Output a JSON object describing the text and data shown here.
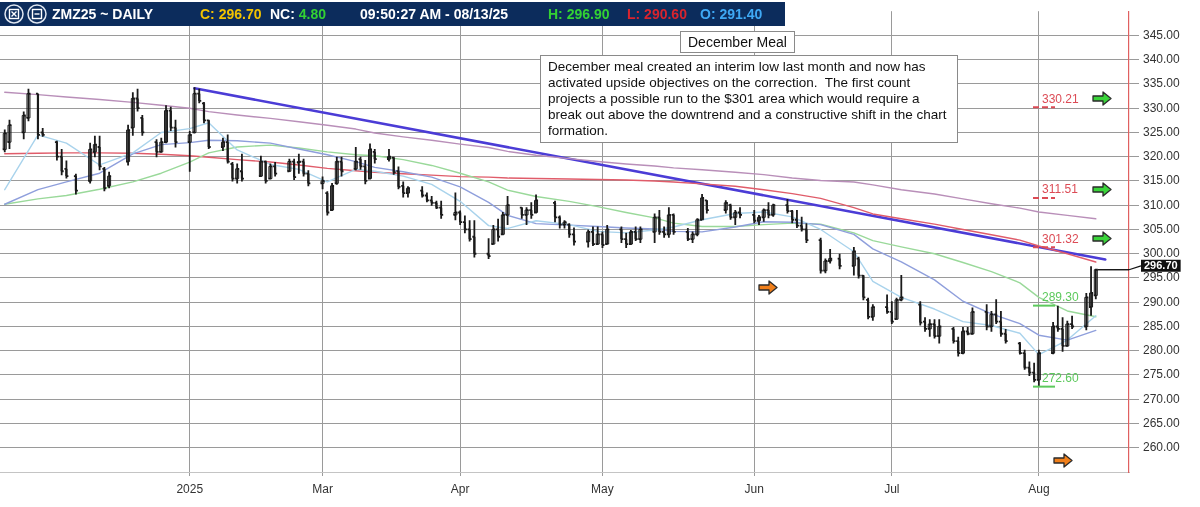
{
  "chart_data": {
    "type": "candlestick",
    "title": "December Meal",
    "subtitle": "December meal created an interim low last month and now has activated upside objectives on the correction.  The first count projects a possible run to the $301 area which would require a break out above the downtrend and a constructive shift in the chart formation.",
    "x": [
      "2024-12-26",
      "2024-12-27",
      "2024-12-30",
      "2024-12-31",
      "2025-01-02",
      "2025-01-03",
      "2025-01-06",
      "2025-01-07",
      "2025-01-08",
      "2025-01-10",
      "2025-01-13",
      "2025-01-14",
      "2025-01-15",
      "2025-01-16",
      "2025-01-17",
      "2025-01-21",
      "2025-01-22",
      "2025-01-23",
      "2025-01-24",
      "2025-01-27",
      "2025-01-28",
      "2025-01-29",
      "2025-01-30",
      "2025-01-31",
      "2025-02-03",
      "2025-02-04",
      "2025-02-05",
      "2025-02-06",
      "2025-02-07",
      "2025-02-10",
      "2025-02-11",
      "2025-02-12",
      "2025-02-13",
      "2025-02-14",
      "2025-02-18",
      "2025-02-19",
      "2025-02-20",
      "2025-02-21",
      "2025-02-24",
      "2025-02-25",
      "2025-02-26",
      "2025-02-27",
      "2025-02-28",
      "2025-03-03",
      "2025-03-04",
      "2025-03-05",
      "2025-03-06",
      "2025-03-07",
      "2025-03-10",
      "2025-03-11",
      "2025-03-12",
      "2025-03-13",
      "2025-03-14",
      "2025-03-17",
      "2025-03-18",
      "2025-03-19",
      "2025-03-20",
      "2025-03-21",
      "2025-03-24",
      "2025-03-25",
      "2025-03-26",
      "2025-03-27",
      "2025-03-28",
      "2025-03-31",
      "2025-04-01",
      "2025-04-02",
      "2025-04-03",
      "2025-04-04",
      "2025-04-07",
      "2025-04-08",
      "2025-04-09",
      "2025-04-10",
      "2025-04-11",
      "2025-04-14",
      "2025-04-15",
      "2025-04-16",
      "2025-04-17",
      "2025-04-21",
      "2025-04-22",
      "2025-04-23",
      "2025-04-24",
      "2025-04-25",
      "2025-04-28",
      "2025-04-29",
      "2025-04-30",
      "2025-05-01",
      "2025-05-02",
      "2025-05-05",
      "2025-05-06",
      "2025-05-07",
      "2025-05-08",
      "2025-05-09",
      "2025-05-12",
      "2025-05-13",
      "2025-05-14",
      "2025-05-15",
      "2025-05-16",
      "2025-05-19",
      "2025-05-20",
      "2025-05-21",
      "2025-05-22",
      "2025-05-23",
      "2025-05-27",
      "2025-05-28",
      "2025-05-29",
      "2025-05-30",
      "2025-06-02",
      "2025-06-03",
      "2025-06-04",
      "2025-06-05",
      "2025-06-06",
      "2025-06-09",
      "2025-06-10",
      "2025-06-11",
      "2025-06-12",
      "2025-06-13",
      "2025-06-16",
      "2025-06-17",
      "2025-06-18",
      "2025-06-20",
      "2025-06-23",
      "2025-06-24",
      "2025-06-25",
      "2025-06-26",
      "2025-06-27",
      "2025-06-30",
      "2025-07-01",
      "2025-07-02",
      "2025-07-03",
      "2025-07-07",
      "2025-07-08",
      "2025-07-09",
      "2025-07-10",
      "2025-07-11",
      "2025-07-14",
      "2025-07-15",
      "2025-07-16",
      "2025-07-17",
      "2025-07-18",
      "2025-07-21",
      "2025-07-22",
      "2025-07-23",
      "2025-07-24",
      "2025-07-25",
      "2025-07-28",
      "2025-07-29",
      "2025-07-30",
      "2025-07-31",
      "2025-08-01",
      "2025-08-04",
      "2025-08-05",
      "2025-08-06",
      "2025-08-07",
      "2025-08-08",
      "2025-08-11",
      "2025-08-12",
      "2025-08-13"
    ],
    "ohlc": [
      [
        321.5,
        325.6,
        320.9,
        324.8
      ],
      [
        323.0,
        327.6,
        321.6,
        326.5
      ],
      [
        325.0,
        329.3,
        323.6,
        328.5
      ],
      [
        328.0,
        334.0,
        327.3,
        333.0
      ],
      [
        333.0,
        333.0,
        323.6,
        324.5
      ],
      [
        325.0,
        325.9,
        324.1,
        324.5
      ],
      [
        323.0,
        323.3,
        319.2,
        320.0
      ],
      [
        320.0,
        321.6,
        316.2,
        317.0
      ],
      [
        317.5,
        319.2,
        315.5,
        316.0
      ],
      [
        316.0,
        316.5,
        312.2,
        313.0
      ],
      [
        315.0,
        322.9,
        314.5,
        321.5
      ],
      [
        321.0,
        324.3,
        319.9,
        322.5
      ],
      [
        322.0,
        324.3,
        317.2,
        318.0
      ],
      [
        317.5,
        317.9,
        312.9,
        313.5
      ],
      [
        314.0,
        316.9,
        313.5,
        316.0
      ],
      [
        319.0,
        326.6,
        318.2,
        325.5
      ],
      [
        326.0,
        333.3,
        324.3,
        332.0
      ],
      [
        332.0,
        334.0,
        329.3,
        330.0
      ],
      [
        328.0,
        328.6,
        324.3,
        325.0
      ],
      [
        323.0,
        323.6,
        319.9,
        321.0
      ],
      [
        321.0,
        323.9,
        320.8,
        323.0
      ],
      [
        323.0,
        330.6,
        322.8,
        329.5
      ],
      [
        329.5,
        330.3,
        325.3,
        326.0
      ],
      [
        326.0,
        327.6,
        321.9,
        323.0
      ],
      [
        323.0,
        325.3,
        316.9,
        324.5
      ],
      [
        325.0,
        334.3,
        324.8,
        333.0
      ],
      [
        333.0,
        334.0,
        331.0,
        331.5
      ],
      [
        331.0,
        331.3,
        326.9,
        327.5
      ],
      [
        327.5,
        327.6,
        321.6,
        322.0
      ],
      [
        322.0,
        323.9,
        321.2,
        323.0
      ],
      [
        323.0,
        324.6,
        318.6,
        319.0
      ],
      [
        318.5,
        318.9,
        314.9,
        315.5
      ],
      [
        315.5,
        318.6,
        314.5,
        317.5
      ],
      [
        317.0,
        320.6,
        314.9,
        315.5
      ],
      [
        316.0,
        320.2,
        315.8,
        319.0
      ],
      [
        319.0,
        319.2,
        314.5,
        315.0
      ],
      [
        315.5,
        318.6,
        315.3,
        318.0
      ],
      [
        318.0,
        318.9,
        315.9,
        316.5
      ],
      [
        317.0,
        319.6,
        316.9,
        319.0
      ],
      [
        319.0,
        319.6,
        315.2,
        315.8
      ],
      [
        318.8,
        320.6,
        316.5,
        319.0
      ],
      [
        319.0,
        319.6,
        315.9,
        316.5
      ],
      [
        316.5,
        317.2,
        313.9,
        314.5
      ],
      [
        314.5,
        315.9,
        313.3,
        315.0
      ],
      [
        312.5,
        312.9,
        307.9,
        308.5
      ],
      [
        309.0,
        314.6,
        308.8,
        314.0
      ],
      [
        314.5,
        320.0,
        314.2,
        319.0
      ],
      [
        319.0,
        320.0,
        315.9,
        317.0
      ],
      [
        317.5,
        322.0,
        317.2,
        319.0
      ],
      [
        319.5,
        320.0,
        317.3,
        318.0
      ],
      [
        318.0,
        319.3,
        314.3,
        315.0
      ],
      [
        315.5,
        322.7,
        315.3,
        321.5
      ],
      [
        321.0,
        321.6,
        318.6,
        319.5
      ],
      [
        319.5,
        321.6,
        319.0,
        320.0
      ],
      [
        319.8,
        320.0,
        316.3,
        316.8
      ],
      [
        317.0,
        318.0,
        313.3,
        313.8
      ],
      [
        314.0,
        314.9,
        311.6,
        312.5
      ],
      [
        312.5,
        313.9,
        311.6,
        313.5
      ],
      [
        313.0,
        313.9,
        311.6,
        312.0
      ],
      [
        312.0,
        312.6,
        310.6,
        311.0
      ],
      [
        311.0,
        311.9,
        309.9,
        310.5
      ],
      [
        310.5,
        310.9,
        309.2,
        309.5
      ],
      [
        309.5,
        310.9,
        307.2,
        308.0
      ],
      [
        308.0,
        312.6,
        306.9,
        308.5
      ],
      [
        308.5,
        308.9,
        305.9,
        306.5
      ],
      [
        306.5,
        307.9,
        304.2,
        305.0
      ],
      [
        305.0,
        306.9,
        302.5,
        303.0
      ],
      [
        303.5,
        306.9,
        299.2,
        300.0
      ],
      [
        300.0,
        303.2,
        298.9,
        299.5
      ],
      [
        302.0,
        305.9,
        301.9,
        305.0
      ],
      [
        305.0,
        307.2,
        302.5,
        303.5
      ],
      [
        304.0,
        308.6,
        303.8,
        308.0
      ],
      [
        308.0,
        311.9,
        305.9,
        310.0
      ],
      [
        309.5,
        309.6,
        307.2,
        308.0
      ],
      [
        308.0,
        309.6,
        305.9,
        309.0
      ],
      [
        309.0,
        310.6,
        307.2,
        308.0
      ],
      [
        308.5,
        312.2,
        308.3,
        311.0
      ],
      [
        310.5,
        310.9,
        306.5,
        307.5
      ],
      [
        307.5,
        307.9,
        305.2,
        306.0
      ],
      [
        306.0,
        306.9,
        305.2,
        306.5
      ],
      [
        306.0,
        306.3,
        303.3,
        304.0
      ],
      [
        304.0,
        305.4,
        301.7,
        302.5
      ],
      [
        302.5,
        305.0,
        301.3,
        304.5
      ],
      [
        304.5,
        305.6,
        301.6,
        302.0
      ],
      [
        302.0,
        305.6,
        301.8,
        304.0
      ],
      [
        304.0,
        304.6,
        301.2,
        301.8
      ],
      [
        302.0,
        305.9,
        301.9,
        305.0
      ],
      [
        305.0,
        305.6,
        302.2,
        303.0
      ],
      [
        303.0,
        304.3,
        301.2,
        302.0
      ],
      [
        302.0,
        304.9,
        301.8,
        304.5
      ],
      [
        304.5,
        305.6,
        302.6,
        303.0
      ],
      [
        303.0,
        305.6,
        302.2,
        305.0
      ],
      [
        304.5,
        308.3,
        302.2,
        307.5
      ],
      [
        307.5,
        309.0,
        303.9,
        304.5
      ],
      [
        304.5,
        305.6,
        303.3,
        304.0
      ],
      [
        304.0,
        309.6,
        303.3,
        308.0
      ],
      [
        308.0,
        308.3,
        303.9,
        304.5
      ],
      [
        304.5,
        305.3,
        302.6,
        303.0
      ],
      [
        303.0,
        304.6,
        302.2,
        304.0
      ],
      [
        304.0,
        307.3,
        303.6,
        307.0
      ],
      [
        307.0,
        312.3,
        307.0,
        311.5
      ],
      [
        311.0,
        311.0,
        308.3,
        309.0
      ],
      [
        309.0,
        311.0,
        308.3,
        310.5
      ],
      [
        310.0,
        310.3,
        307.0,
        307.5
      ],
      [
        307.5,
        309.0,
        305.9,
        308.5
      ],
      [
        308.5,
        309.6,
        307.3,
        308.0
      ],
      [
        308.0,
        309.0,
        306.3,
        306.8
      ],
      [
        306.8,
        308.0,
        305.9,
        307.5
      ],
      [
        307.5,
        309.3,
        306.6,
        309.0
      ],
      [
        309.0,
        310.6,
        307.3,
        308.0
      ],
      [
        308.0,
        310.3,
        307.6,
        310.0
      ],
      [
        310.0,
        311.3,
        308.3,
        308.8
      ],
      [
        308.8,
        309.0,
        306.3,
        307.0
      ],
      [
        307.0,
        309.0,
        305.3,
        305.8
      ],
      [
        305.8,
        307.6,
        304.6,
        305.0
      ],
      [
        305.0,
        306.3,
        302.2,
        302.8
      ],
      [
        302.8,
        303.3,
        295.9,
        296.5
      ],
      [
        296.5,
        299.0,
        296.0,
        298.5
      ],
      [
        298.5,
        301.0,
        298.0,
        299.0
      ],
      [
        299.0,
        300.0,
        296.8,
        297.5
      ],
      [
        297.5,
        301.4,
        295.5,
        300.5
      ],
      [
        299.0,
        299.4,
        294.9,
        295.5
      ],
      [
        295.5,
        295.6,
        290.4,
        291.0
      ],
      [
        290.5,
        290.9,
        286.5,
        287.0
      ],
      [
        287.0,
        289.6,
        286.2,
        289.0
      ],
      [
        289.0,
        291.6,
        287.6,
        288.0
      ],
      [
        288.0,
        290.2,
        285.5,
        286.0
      ],
      [
        286.5,
        290.9,
        286.5,
        290.5
      ],
      [
        290.5,
        295.6,
        290.2,
        291.0
      ],
      [
        289.5,
        290.2,
        285.2,
        285.8
      ],
      [
        286.0,
        286.9,
        283.9,
        284.5
      ],
      [
        284.5,
        286.5,
        282.9,
        285.5
      ],
      [
        285.5,
        286.5,
        282.5,
        283.0
      ],
      [
        283.0,
        286.5,
        281.5,
        285.0
      ],
      [
        284.5,
        284.9,
        281.5,
        282.0
      ],
      [
        282.0,
        282.9,
        278.8,
        279.5
      ],
      [
        279.5,
        284.9,
        279.3,
        284.0
      ],
      [
        284.0,
        284.9,
        283.2,
        283.5
      ],
      [
        283.5,
        288.9,
        283.3,
        288.0
      ],
      [
        288.0,
        289.6,
        284.2,
        285.0
      ],
      [
        285.0,
        288.2,
        283.9,
        287.5
      ],
      [
        287.5,
        290.6,
        285.5,
        286.0
      ],
      [
        286.0,
        288.2,
        282.9,
        283.5
      ],
      [
        283.5,
        284.5,
        281.5,
        282.0
      ],
      [
        281.5,
        281.8,
        279.2,
        279.5
      ],
      [
        279.5,
        280.2,
        276.1,
        276.5
      ],
      [
        276.5,
        277.8,
        274.8,
        275.5
      ],
      [
        275.5,
        277.5,
        273.5,
        274.0
      ],
      [
        274.0,
        280.2,
        272.6,
        279.5
      ],
      [
        279.5,
        285.9,
        279.3,
        285.0
      ],
      [
        285.0,
        289.3,
        283.9,
        284.5
      ],
      [
        284.5,
        286.9,
        279.8,
        281.0
      ],
      [
        281.0,
        286.2,
        280.8,
        285.5
      ],
      [
        285.5,
        287.2,
        284.5,
        285.0
      ],
      [
        285.0,
        291.9,
        284.2,
        291.0
      ],
      [
        289.0,
        297.4,
        287.2,
        291.9
      ],
      [
        291.4,
        296.9,
        290.6,
        296.7
      ]
    ],
    "color": "#1a1a1a",
    "series": [
      {
        "type": "line",
        "color": "#a9d3ec",
        "x": [
          "2024-12-26",
          "2025-01-02",
          "2025-01-08",
          "2025-01-15",
          "2025-01-22",
          "2025-01-28",
          "2025-02-03",
          "2025-02-07",
          "2025-02-13",
          "2025-02-20",
          "2025-02-26",
          "2025-03-04",
          "2025-03-10",
          "2025-03-14",
          "2025-03-20",
          "2025-03-26",
          "2025-04-01",
          "2025-04-07",
          "2025-04-11",
          "2025-04-17",
          "2025-04-24",
          "2025-04-30",
          "2025-05-06",
          "2025-05-12",
          "2025-05-16",
          "2025-05-22",
          "2025-05-29",
          "2025-06-04",
          "2025-06-10",
          "2025-06-16",
          "2025-06-23",
          "2025-06-27",
          "2025-07-03",
          "2025-07-10",
          "2025-07-16",
          "2025-07-22",
          "2025-07-28",
          "2025-08-01",
          "2025-08-07",
          "2025-08-13"
        ],
        "values": [
          313.2,
          324.5,
          322.8,
          318.3,
          320.8,
          325.0,
          325.8,
          327.0,
          321.4,
          318.4,
          317.4,
          314.8,
          317.4,
          317.0,
          316.0,
          314.3,
          310.8,
          305.8,
          305.2,
          306.8,
          306.0,
          304.6,
          304.3,
          304.9,
          305.5,
          307.0,
          308.3,
          308.6,
          307.6,
          305.0,
          300.4,
          294.3,
          291.0,
          288.6,
          286.0,
          285.2,
          283.6,
          279.2,
          282.2,
          287.2
        ]
      },
      {
        "type": "line",
        "color": "#8f9fdc",
        "x": [
          "2024-12-26",
          "2025-01-02",
          "2025-01-08",
          "2025-01-15",
          "2025-01-22",
          "2025-01-28",
          "2025-02-03",
          "2025-02-07",
          "2025-02-13",
          "2025-02-20",
          "2025-02-26",
          "2025-03-04",
          "2025-03-10",
          "2025-03-14",
          "2025-03-20",
          "2025-03-26",
          "2025-04-01",
          "2025-04-07",
          "2025-04-11",
          "2025-04-17",
          "2025-04-24",
          "2025-04-30",
          "2025-05-06",
          "2025-05-12",
          "2025-05-16",
          "2025-05-22",
          "2025-05-29",
          "2025-06-04",
          "2025-06-10",
          "2025-06-16",
          "2025-06-23",
          "2025-06-27",
          "2025-07-03",
          "2025-07-10",
          "2025-07-16",
          "2025-07-22",
          "2025-07-28",
          "2025-08-01",
          "2025-08-07",
          "2025-08-13"
        ],
        "values": [
          310.2,
          313.2,
          314.8,
          316.6,
          320.6,
          322.5,
          322.9,
          323.4,
          323.3,
          322.8,
          321.6,
          320.4,
          319.0,
          317.8,
          316.9,
          315.8,
          313.8,
          310.6,
          307.9,
          306.2,
          305.9,
          305.6,
          305.3,
          305.1,
          304.6,
          304.5,
          305.5,
          306.6,
          306.5,
          306.0,
          304.0,
          301.0,
          298.3,
          294.6,
          290.2,
          287.6,
          285.6,
          283.2,
          282.2,
          284.2
        ]
      },
      {
        "type": "line",
        "color": "#9ad99a",
        "x": [
          "2024-12-26",
          "2025-01-02",
          "2025-01-08",
          "2025-01-15",
          "2025-01-22",
          "2025-01-28",
          "2025-02-03",
          "2025-02-07",
          "2025-02-13",
          "2025-02-20",
          "2025-02-26",
          "2025-03-04",
          "2025-03-10",
          "2025-03-14",
          "2025-03-20",
          "2025-03-26",
          "2025-04-01",
          "2025-04-07",
          "2025-04-11",
          "2025-04-17",
          "2025-04-24",
          "2025-04-30",
          "2025-05-06",
          "2025-05-12",
          "2025-05-16",
          "2025-05-22",
          "2025-05-29",
          "2025-06-04",
          "2025-06-10",
          "2025-06-16",
          "2025-06-23",
          "2025-06-27",
          "2025-07-03",
          "2025-07-10",
          "2025-07-16",
          "2025-07-22",
          "2025-07-28",
          "2025-08-01",
          "2025-08-07",
          "2025-08-13"
        ],
        "values": [
          310.2,
          311.3,
          312.0,
          313.3,
          314.8,
          316.6,
          318.9,
          320.8,
          322.0,
          322.4,
          321.8,
          321.0,
          320.4,
          320.2,
          319.4,
          318.2,
          316.6,
          314.8,
          313.1,
          311.8,
          310.8,
          309.7,
          308.5,
          307.4,
          306.3,
          305.6,
          305.6,
          306.0,
          306.3,
          306.1,
          304.3,
          302.7,
          301.4,
          300.0,
          298.2,
          296.3,
          294.0,
          291.0,
          288.2,
          287.0
        ]
      },
      {
        "type": "line",
        "color": "#e05c6a",
        "x": [
          "2024-12-26",
          "2025-01-02",
          "2025-01-08",
          "2025-01-15",
          "2025-01-22",
          "2025-01-28",
          "2025-02-03",
          "2025-02-07",
          "2025-02-13",
          "2025-02-20",
          "2025-02-26",
          "2025-03-04",
          "2025-03-10",
          "2025-03-14",
          "2025-03-20",
          "2025-03-26",
          "2025-04-01",
          "2025-04-07",
          "2025-04-11",
          "2025-04-17",
          "2025-04-24",
          "2025-04-30",
          "2025-05-06",
          "2025-05-12",
          "2025-05-16",
          "2025-05-22",
          "2025-05-29",
          "2025-06-04",
          "2025-06-10",
          "2025-06-16",
          "2025-06-23",
          "2025-06-27",
          "2025-07-03",
          "2025-07-10",
          "2025-07-16",
          "2025-07-22",
          "2025-07-28",
          "2025-08-01",
          "2025-08-07",
          "2025-08-13"
        ],
        "values": [
          320.6,
          320.7,
          320.8,
          320.8,
          320.7,
          320.5,
          320.2,
          319.9,
          319.4,
          318.9,
          318.3,
          317.6,
          317.1,
          316.8,
          316.5,
          316.2,
          315.9,
          315.8,
          315.6,
          315.5,
          315.4,
          315.3,
          315.2,
          315.0,
          314.8,
          314.4,
          313.9,
          313.2,
          312.4,
          311.4,
          309.5,
          308.2,
          307.2,
          306.1,
          305.0,
          303.9,
          302.8,
          301.6,
          300.0,
          298.3
        ]
      },
      {
        "type": "line",
        "color": "#b98fb9",
        "x": [
          "2024-12-26",
          "2025-01-02",
          "2025-01-08",
          "2025-01-15",
          "2025-01-22",
          "2025-01-28",
          "2025-02-03",
          "2025-02-07",
          "2025-02-13",
          "2025-02-20",
          "2025-02-26",
          "2025-03-04",
          "2025-03-10",
          "2025-03-14",
          "2025-03-20",
          "2025-03-26",
          "2025-04-01",
          "2025-04-07",
          "2025-04-11",
          "2025-04-17",
          "2025-04-24",
          "2025-04-30",
          "2025-05-06",
          "2025-05-12",
          "2025-05-16",
          "2025-05-22",
          "2025-05-29",
          "2025-06-04",
          "2025-06-10",
          "2025-06-16",
          "2025-06-23",
          "2025-06-27",
          "2025-07-03",
          "2025-07-10",
          "2025-07-16",
          "2025-07-22",
          "2025-07-28",
          "2025-08-01",
          "2025-08-07",
          "2025-08-13"
        ],
        "values": [
          333.3,
          332.8,
          332.3,
          331.8,
          331.2,
          330.6,
          330.0,
          329.3,
          328.6,
          327.9,
          327.2,
          326.5,
          325.7,
          324.9,
          324.1,
          323.4,
          322.6,
          321.9,
          321.1,
          320.3,
          319.6,
          319.0,
          318.5,
          318.1,
          317.7,
          317.3,
          316.8,
          316.3,
          315.6,
          315.1,
          314.8,
          314.2,
          313.2,
          312.3,
          311.3,
          310.3,
          309.4,
          308.6,
          307.9,
          307.2
        ]
      },
      {
        "type": "line",
        "color": "#4b3cd6",
        "x": [
          "2025-02-04",
          "2025-08-15"
        ],
        "values": [
          334.1,
          298.8
        ]
      }
    ],
    "xlim": [
      "2024-12-25",
      "2025-08-20"
    ],
    "xticks": [
      {
        "value": "2025-02-03",
        "label": "2025"
      },
      {
        "value": "2025-03-03",
        "label": "Mar"
      },
      {
        "value": "2025-04-01",
        "label": "Apr"
      },
      {
        "value": "2025-05-01",
        "label": "May"
      },
      {
        "value": "2025-06-02",
        "label": "Jun"
      },
      {
        "value": "2025-07-01",
        "label": "Jul"
      },
      {
        "value": "2025-08-01",
        "label": "Aug"
      }
    ],
    "ylim": [
      255,
      350
    ],
    "yticks": [
      {
        "value": 260,
        "label": "260.00"
      },
      {
        "value": 265,
        "label": "265.00"
      },
      {
        "value": 270,
        "label": "270.00"
      },
      {
        "value": 275,
        "label": "275.00"
      },
      {
        "value": 280,
        "label": "280.00"
      },
      {
        "value": 285,
        "label": "285.00"
      },
      {
        "value": 290,
        "label": "290.00"
      },
      {
        "value": 295,
        "label": "295.00"
      },
      {
        "value": 300,
        "label": "300.00"
      },
      {
        "value": 305,
        "label": "305.00"
      },
      {
        "value": 310,
        "label": "310.00"
      },
      {
        "value": 315,
        "label": "315.00"
      },
      {
        "value": 320,
        "label": "320.00"
      },
      {
        "value": 325,
        "label": "325.00"
      },
      {
        "value": 330,
        "label": "330.00"
      },
      {
        "value": 335,
        "label": "335.00"
      },
      {
        "value": 340,
        "label": "340.00"
      },
      {
        "value": 345,
        "label": "345.00"
      }
    ],
    "grid": true,
    "ref_lines": [
      {
        "axis": "y",
        "value": 330.21,
        "label": "330.21",
        "color": "#dc4b55",
        "line_style": "dashed"
      },
      {
        "axis": "y",
        "value": 311.51,
        "label": "311.51",
        "color": "#dc4b55",
        "line_style": "dashed"
      },
      {
        "axis": "y",
        "value": 301.32,
        "label": "301.32",
        "color": "#dc4b55",
        "line_style": "dashed"
      },
      {
        "axis": "y",
        "value": 289.3,
        "label": "289.30",
        "color": "#5cc95c"
      },
      {
        "axis": "y",
        "value": 272.6,
        "label": "272.60",
        "color": "#5cc95c"
      },
      {
        "axis": "y",
        "value": 296.7,
        "label": "296.70",
        "color": "#111111"
      }
    ],
    "annotations": [
      "ZMZ25 ~ DAILY",
      "C: 296.70",
      "NC: 4.80",
      "09:50:27 AM - 08/13/25",
      "H: 296.90",
      "L: 290.60",
      "O: 291.40"
    ]
  }
}
